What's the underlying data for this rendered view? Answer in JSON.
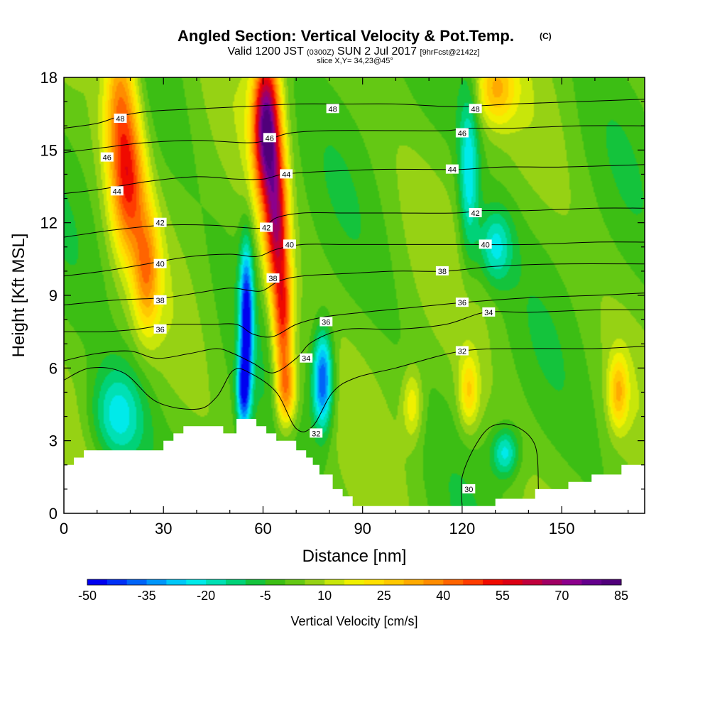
{
  "chart_data": {
    "type": "heatmap",
    "title": "Angled Section: Vertical Velocity & Pot.Temp.",
    "title_suffix": "(C)",
    "subtitle_main_a": "Valid 1200 JST",
    "subtitle_zulu": "(0300Z)",
    "subtitle_main_b": "SUN 2 Jul 2017",
    "subtitle_forecast": "[9hrFcst@2142z]",
    "subtitle_slice": "slice X,Y= 34,23@45°",
    "xlabel": "Distance [nm]",
    "ylabel": "Height [Kft MSL]",
    "xlim": [
      0,
      175
    ],
    "ylim": [
      0,
      18
    ],
    "xticks": [
      0,
      30,
      60,
      90,
      120,
      150
    ],
    "yticks": [
      0,
      3,
      6,
      9,
      12,
      15,
      18
    ],
    "colorbar": {
      "label": "Vertical Velocity [cm/s]",
      "min": -50,
      "max": 85,
      "step": 5,
      "tick_labels": [
        "-50",
        "-35",
        "-20",
        "-5",
        "10",
        "25",
        "40",
        "55",
        "70",
        "85"
      ],
      "colors": [
        "#0000f0",
        "#0030f6",
        "#0064f8",
        "#0096fa",
        "#00c8f8",
        "#00eaea",
        "#00e0b4",
        "#00d278",
        "#14c33c",
        "#3cbe14",
        "#64c814",
        "#96d214",
        "#c8e60a",
        "#f0f000",
        "#ffe000",
        "#ffc800",
        "#ffaa00",
        "#ff8c00",
        "#ff6400",
        "#ff3c00",
        "#f00a00",
        "#dc0014",
        "#c0003c",
        "#a00064",
        "#8c008c",
        "#64008c",
        "#50007a"
      ]
    },
    "velocity_features": [
      {
        "kind": "updraft",
        "x": 17,
        "z": 17,
        "sx": 5,
        "sz": 4,
        "value": 35
      },
      {
        "kind": "updraft",
        "x": 20,
        "z": 13.5,
        "sx": 5,
        "sz": 3,
        "value": 35
      },
      {
        "kind": "updraft",
        "x": 25,
        "z": 10,
        "sx": 4,
        "sz": 2.5,
        "value": 30
      },
      {
        "kind": "updraft",
        "x": 61,
        "z": 16,
        "sx": 4,
        "sz": 3,
        "value": 75
      },
      {
        "kind": "updraft",
        "x": 64,
        "z": 12,
        "sx": 3.5,
        "sz": 3,
        "value": 55
      },
      {
        "kind": "updraft",
        "x": 66,
        "z": 8,
        "sx": 3,
        "sz": 2.5,
        "value": 45
      },
      {
        "kind": "updraft",
        "x": 67,
        "z": 5,
        "sx": 3,
        "sz": 1.5,
        "value": 35
      },
      {
        "kind": "updraft",
        "x": 130,
        "z": 17.5,
        "sx": 6,
        "sz": 1.5,
        "value": 25
      },
      {
        "kind": "updraft",
        "x": 167,
        "z": 5,
        "sx": 3,
        "sz": 1.5,
        "value": 25
      },
      {
        "kind": "updraft",
        "x": 122,
        "z": 5,
        "sx": 3,
        "sz": 1.5,
        "value": 22
      },
      {
        "kind": "updraft",
        "x": 105,
        "z": 4.5,
        "sx": 3,
        "sz": 1.5,
        "value": 18
      },
      {
        "kind": "downdraft",
        "x": 55,
        "z": 8,
        "sx": 2,
        "sz": 3,
        "value": -50
      },
      {
        "kind": "downdraft",
        "x": 54,
        "z": 5,
        "sx": 2,
        "sz": 1.5,
        "value": -35
      },
      {
        "kind": "downdraft",
        "x": 78,
        "z": 5.5,
        "sx": 3,
        "sz": 2,
        "value": -45
      },
      {
        "kind": "downdraft",
        "x": 122,
        "z": 14,
        "sx": 3,
        "sz": 3.5,
        "value": -25
      },
      {
        "kind": "downdraft",
        "x": 130,
        "z": 11,
        "sx": 5,
        "sz": 1.5,
        "value": -22
      },
      {
        "kind": "downdraft",
        "x": 16,
        "z": 4,
        "sx": 8,
        "sz": 2,
        "value": -25
      },
      {
        "kind": "downdraft",
        "x": 133,
        "z": 2.5,
        "sx": 4,
        "sz": 1,
        "value": -25
      }
    ],
    "terrain": [
      [
        0,
        2.0
      ],
      [
        3,
        2.0
      ],
      [
        3,
        2.3
      ],
      [
        6,
        2.3
      ],
      [
        6,
        2.6
      ],
      [
        30,
        2.6
      ],
      [
        30,
        3.0
      ],
      [
        33,
        3.0
      ],
      [
        33,
        3.3
      ],
      [
        36,
        3.3
      ],
      [
        36,
        3.6
      ],
      [
        48,
        3.6
      ],
      [
        48,
        3.3
      ],
      [
        52,
        3.3
      ],
      [
        52,
        3.9
      ],
      [
        58,
        3.9
      ],
      [
        58,
        3.6
      ],
      [
        61,
        3.6
      ],
      [
        61,
        3.3
      ],
      [
        64,
        3.3
      ],
      [
        64,
        3.0
      ],
      [
        70,
        3.0
      ],
      [
        70,
        2.6
      ],
      [
        73,
        2.6
      ],
      [
        73,
        2.3
      ],
      [
        75,
        2.3
      ],
      [
        75,
        2.0
      ],
      [
        77,
        2.0
      ],
      [
        77,
        1.6
      ],
      [
        81,
        1.6
      ],
      [
        81,
        1.0
      ],
      [
        84,
        1.0
      ],
      [
        84,
        0.7
      ],
      [
        87,
        0.7
      ],
      [
        87,
        0.3
      ],
      [
        130,
        0.3
      ],
      [
        130,
        0.6
      ],
      [
        142,
        0.6
      ],
      [
        142,
        1.0
      ],
      [
        152,
        1.0
      ],
      [
        152,
        1.3
      ],
      [
        159,
        1.3
      ],
      [
        159,
        1.6
      ],
      [
        168,
        1.6
      ],
      [
        168,
        2.0
      ],
      [
        175,
        2.0
      ]
    ],
    "isentropes": [
      {
        "value": 30,
        "label": "30",
        "label_at": [
          122,
          1.0
        ],
        "points": [
          [
            120,
            0.3
          ],
          [
            120,
            1.5
          ],
          [
            124,
            2.8
          ],
          [
            129,
            3.6
          ],
          [
            136,
            3.6
          ],
          [
            142,
            2.8
          ],
          [
            143,
            1.0
          ]
        ]
      },
      {
        "value": 32,
        "label": "32",
        "label_at": [
          76,
          3.3
        ],
        "points": [
          [
            0,
            5.5
          ],
          [
            8,
            6.0
          ],
          [
            18,
            5.8
          ],
          [
            28,
            4.6
          ],
          [
            40,
            4.3
          ],
          [
            46,
            4.8
          ],
          [
            51,
            5.9
          ],
          [
            56,
            5.8
          ],
          [
            64,
            5.0
          ],
          [
            70,
            3.5
          ],
          [
            75,
            3.6
          ],
          [
            81,
            5.0
          ],
          [
            88,
            5.6
          ],
          [
            100,
            6.0
          ],
          [
            120,
            6.7
          ],
          [
            140,
            6.8
          ],
          [
            160,
            6.8
          ],
          [
            175,
            6.9
          ]
        ]
      },
      {
        "value": 34,
        "label": "34",
        "label_at": [
          73,
          6.4
        ],
        "points": [
          [
            0,
            6.3
          ],
          [
            10,
            6.6
          ],
          [
            20,
            6.7
          ],
          [
            28,
            6.4
          ],
          [
            38,
            6.6
          ],
          [
            46,
            6.8
          ],
          [
            51,
            6.6
          ],
          [
            57,
            6.2
          ],
          [
            63,
            5.8
          ],
          [
            70,
            6.4
          ],
          [
            75,
            7.1
          ],
          [
            85,
            7.6
          ],
          [
            100,
            7.6
          ],
          [
            115,
            7.8
          ],
          [
            127,
            8.3
          ],
          [
            140,
            8.3
          ],
          [
            160,
            8.4
          ],
          [
            175,
            8.4
          ]
        ]
      },
      {
        "value": 36,
        "label": "36",
        "label_at": [
          79,
          7.9
        ],
        "points": [
          [
            0,
            7.5
          ],
          [
            12,
            7.5
          ],
          [
            22,
            7.6
          ],
          [
            32,
            7.8
          ],
          [
            44,
            7.8
          ],
          [
            52,
            7.8
          ],
          [
            57,
            7.4
          ],
          [
            63,
            7.3
          ],
          [
            70,
            7.8
          ],
          [
            78,
            8.1
          ],
          [
            90,
            8.3
          ],
          [
            105,
            8.5
          ],
          [
            120,
            8.7
          ],
          [
            140,
            8.9
          ],
          [
            160,
            9.0
          ],
          [
            175,
            9.1
          ]
        ]
      },
      {
        "value": 38,
        "label": "38",
        "label_at": [
          29,
          8.8
        ],
        "points": [
          [
            0,
            8.6
          ],
          [
            15,
            8.8
          ],
          [
            30,
            8.9
          ],
          [
            40,
            9.1
          ],
          [
            50,
            9.3
          ],
          [
            56,
            9.2
          ],
          [
            60,
            9.2
          ],
          [
            65,
            9.6
          ],
          [
            72,
            9.8
          ],
          [
            85,
            9.9
          ],
          [
            100,
            10.0
          ],
          [
            115,
            10.0
          ],
          [
            130,
            10.2
          ],
          [
            150,
            10.3
          ],
          [
            175,
            10.3
          ]
        ]
      },
      {
        "value": 40,
        "label": "40",
        "label_at": [
          68,
          11.1
        ],
        "points": [
          [
            0,
            9.8
          ],
          [
            12,
            10.0
          ],
          [
            25,
            10.3
          ],
          [
            38,
            10.6
          ],
          [
            50,
            10.7
          ],
          [
            58,
            10.6
          ],
          [
            64,
            10.9
          ],
          [
            72,
            11.1
          ],
          [
            85,
            11.1
          ],
          [
            100,
            11.1
          ],
          [
            120,
            11.1
          ],
          [
            140,
            11.1
          ],
          [
            160,
            11.2
          ],
          [
            175,
            11.2
          ]
        ]
      },
      {
        "value": 42,
        "label": "42",
        "label_at": [
          61,
          11.8
        ],
        "points": [
          [
            0,
            11.4
          ],
          [
            15,
            11.7
          ],
          [
            30,
            11.9
          ],
          [
            44,
            11.9
          ],
          [
            54,
            11.8
          ],
          [
            60,
            11.8
          ],
          [
            64,
            12.2
          ],
          [
            72,
            12.4
          ],
          [
            85,
            12.4
          ],
          [
            100,
            12.4
          ],
          [
            118,
            12.4
          ],
          [
            126,
            12.5
          ],
          [
            140,
            12.5
          ],
          [
            160,
            12.6
          ],
          [
            175,
            12.6
          ]
        ]
      },
      {
        "value": 44,
        "label": "44",
        "label_at": [
          67,
          14.0
        ],
        "points": [
          [
            0,
            13.2
          ],
          [
            12,
            13.4
          ],
          [
            25,
            13.7
          ],
          [
            40,
            13.9
          ],
          [
            52,
            13.8
          ],
          [
            60,
            13.8
          ],
          [
            66,
            14.0
          ],
          [
            76,
            14.1
          ],
          [
            95,
            14.2
          ],
          [
            110,
            14.2
          ],
          [
            120,
            14.2
          ],
          [
            132,
            14.3
          ],
          [
            150,
            14.3
          ],
          [
            175,
            14.4
          ]
        ]
      },
      {
        "value": 46,
        "label": "46",
        "label_at": [
          62,
          15.5
        ],
        "points": [
          [
            0,
            14.9
          ],
          [
            12,
            15.1
          ],
          [
            24,
            15.3
          ],
          [
            40,
            15.4
          ],
          [
            55,
            15.3
          ],
          [
            61,
            15.4
          ],
          [
            68,
            15.7
          ],
          [
            80,
            15.8
          ],
          [
            100,
            15.8
          ],
          [
            115,
            15.8
          ],
          [
            122,
            15.9
          ],
          [
            135,
            15.9
          ],
          [
            155,
            16.0
          ],
          [
            175,
            16.0
          ]
        ]
      },
      {
        "value": 48,
        "label": "48",
        "label_at": [
          17,
          16.3
        ],
        "points": [
          [
            0,
            15.9
          ],
          [
            10,
            16.1
          ],
          [
            17,
            16.4
          ],
          [
            26,
            16.6
          ],
          [
            40,
            16.7
          ],
          [
            55,
            16.8
          ],
          [
            70,
            16.9
          ],
          [
            85,
            16.9
          ],
          [
            100,
            16.9
          ],
          [
            115,
            16.8
          ],
          [
            122,
            16.8
          ],
          [
            135,
            16.9
          ],
          [
            155,
            17.0
          ],
          [
            175,
            17.1
          ]
        ]
      }
    ],
    "extra_labels": [
      {
        "value": 48,
        "label": "48",
        "at": [
          81,
          16.7
        ]
      },
      {
        "value": 48,
        "label": "48",
        "at": [
          124,
          16.7
        ]
      },
      {
        "value": 46,
        "label": "46",
        "at": [
          13,
          14.7
        ]
      },
      {
        "value": 46,
        "label": "46",
        "at": [
          120,
          15.7
        ]
      },
      {
        "value": 44,
        "label": "44",
        "at": [
          16,
          13.3
        ]
      },
      {
        "value": 44,
        "label": "44",
        "at": [
          117,
          14.2
        ]
      },
      {
        "value": 42,
        "label": "42",
        "at": [
          29,
          12.0
        ]
      },
      {
        "value": 42,
        "label": "42",
        "at": [
          124,
          12.4
        ]
      },
      {
        "value": 40,
        "label": "40",
        "at": [
          29,
          10.3
        ]
      },
      {
        "value": 40,
        "label": "40",
        "at": [
          127,
          11.1
        ]
      },
      {
        "value": 38,
        "label": "38",
        "at": [
          63,
          9.7
        ]
      },
      {
        "value": 38,
        "label": "38",
        "at": [
          114,
          10.0
        ]
      },
      {
        "value": 36,
        "label": "36",
        "at": [
          29,
          7.6
        ]
      },
      {
        "value": 36,
        "label": "36",
        "at": [
          120,
          8.7
        ]
      },
      {
        "value": 34,
        "label": "34",
        "at": [
          128,
          8.3
        ]
      },
      {
        "value": 32,
        "label": "32",
        "at": [
          120,
          6.7
        ]
      }
    ]
  }
}
